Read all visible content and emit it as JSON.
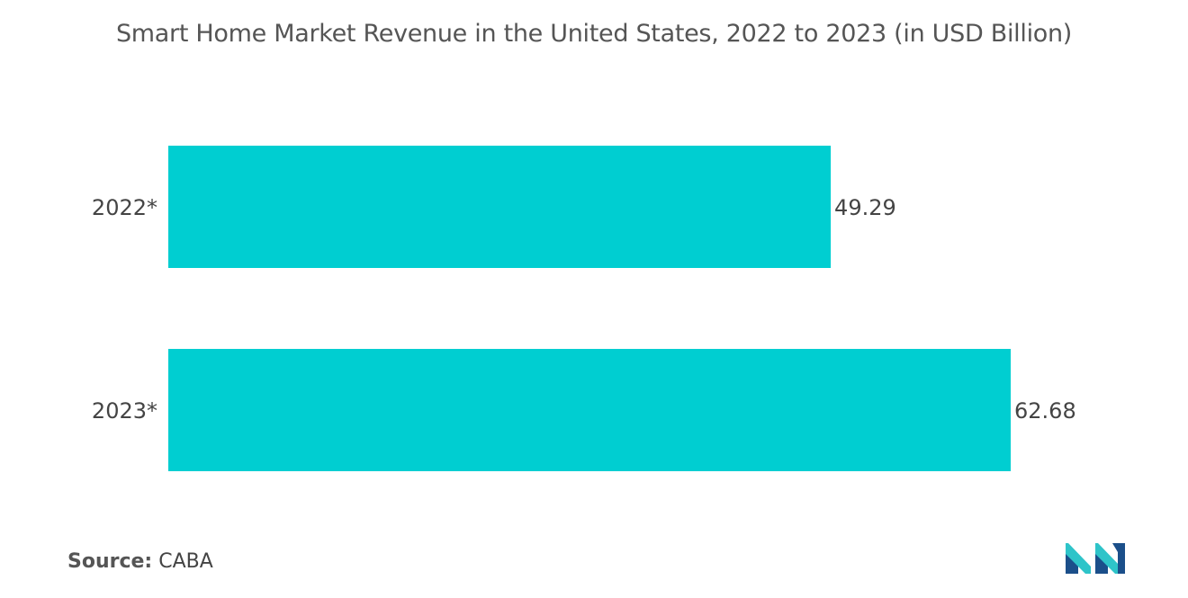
{
  "chart_data": {
    "type": "bar",
    "orientation": "horizontal",
    "title": "Smart Home Market Revenue in the United States, 2022 to 2023 (in USD Billion)",
    "categories": [
      "2022*",
      "2023*"
    ],
    "values": [
      49.29,
      62.68
    ],
    "value_labels": [
      "49.29",
      "62.68"
    ],
    "xlim": [
      0,
      62.68
    ],
    "grid": false,
    "bar_color": "#00CED1"
  },
  "source": {
    "label": "Source:",
    "value": "CABA"
  },
  "logo": {
    "icon": "mordor-intelligence-logo",
    "colors": [
      "#1B4F8A",
      "#2EC4C9"
    ]
  }
}
